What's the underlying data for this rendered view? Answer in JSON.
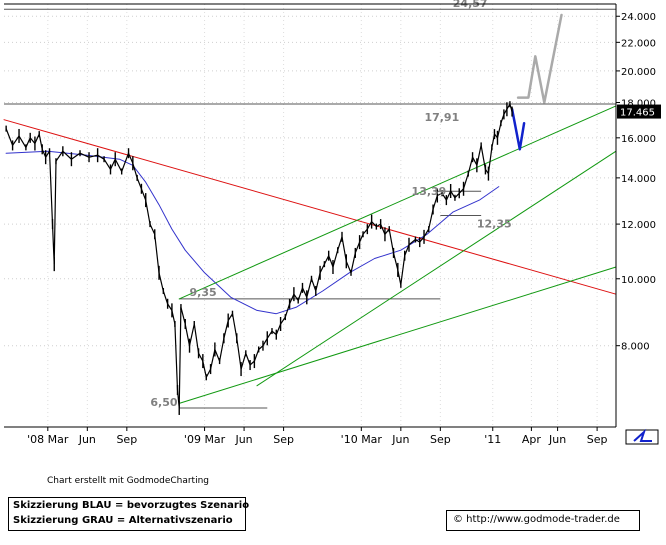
{
  "footer": {
    "credit": "Chart erstellt mit GodmodeCharting",
    "legend_line1": "Skizzierung BLAU = bevorzugtes Szenario",
    "legend_line2": "Skizzierung GRAU = Alternativszenario",
    "url": "© http://www.godmode-trader.de"
  },
  "colors": {
    "price": "#000000",
    "moving_average": "#3333cc",
    "red_trendline": "#dd1111",
    "green_channel": "#119911",
    "blue_scenario": "#1122cc",
    "gray_scenario": "#aaaaaa",
    "level_label": "#808080"
  },
  "chart_data": {
    "type": "line",
    "y_axis": {
      "ticks": [
        "24.000",
        "22.000",
        "20.000",
        "18.000",
        "16.000",
        "14.000",
        "12.000",
        "10.000",
        "8.000"
      ],
      "tick_values": [
        24,
        22,
        20,
        18,
        16,
        14,
        12,
        10,
        8
      ],
      "current_price_label": "17.465",
      "current_price": 17.465,
      "scale": "log",
      "ylim": [
        6.1,
        25
      ]
    },
    "x_axis": {
      "tick_labels": [
        "'08 Mar",
        "Jun",
        "Sep",
        "'09 Mar",
        "Jun",
        "Sep",
        "'10 Mar",
        "Jun",
        "Sep",
        "'11",
        "Apr",
        "Jun",
        "Sep"
      ],
      "tick_dates": [
        "2008-03-01",
        "2008-06-01",
        "2008-09-01",
        "2009-03-01",
        "2009-06-01",
        "2009-09-01",
        "2010-03-01",
        "2010-06-01",
        "2010-09-01",
        "2011-01-01",
        "2011-04-01",
        "2011-06-01",
        "2011-09-01"
      ],
      "range": [
        "2007-11-20",
        "2011-10-15"
      ]
    },
    "levels": [
      {
        "label": "24,57",
        "value": 24.57,
        "from": "2007-11-20",
        "to": "2011-10-15"
      },
      {
        "label": "17,91",
        "value": 17.91,
        "from": "2007-11-20",
        "to": "2011-10-15"
      },
      {
        "label": "13,39",
        "value": 13.39,
        "from": "2010-08-20",
        "to": "2010-12-05"
      },
      {
        "label": "12,35",
        "value": 12.35,
        "from": "2010-09-01",
        "to": "2010-12-05"
      },
      {
        "label": "9,35",
        "value": 9.35,
        "from": "2009-01-01",
        "to": "2010-09-01"
      },
      {
        "label": "6,50",
        "value": 6.5,
        "from": "2009-01-01",
        "to": "2009-07-25"
      }
    ],
    "series": [
      {
        "kind": "price",
        "points": [
          [
            "2007-11-25",
            16.5
          ],
          [
            "2007-12-10",
            15.6
          ],
          [
            "2007-12-25",
            16.1
          ],
          [
            "2008-01-10",
            15.5
          ],
          [
            "2008-01-20",
            16.0
          ],
          [
            "2008-01-31",
            15.7
          ],
          [
            "2008-02-10",
            16.2
          ],
          [
            "2008-02-17",
            15.4
          ],
          [
            "2008-02-25",
            15.0
          ],
          [
            "2008-03-05",
            15.3
          ],
          [
            "2008-03-12",
            12.0
          ],
          [
            "2008-03-16",
            10.5
          ],
          [
            "2008-03-20",
            14.8
          ],
          [
            "2008-04-05",
            15.3
          ],
          [
            "2008-04-25",
            14.9
          ],
          [
            "2008-05-15",
            15.2
          ],
          [
            "2008-06-05",
            15.0
          ],
          [
            "2008-06-25",
            15.1
          ],
          [
            "2008-07-10",
            14.9
          ],
          [
            "2008-07-25",
            14.4
          ],
          [
            "2008-08-05",
            14.9
          ],
          [
            "2008-08-20",
            14.3
          ],
          [
            "2008-09-05",
            15.2
          ],
          [
            "2008-09-15",
            14.7
          ],
          [
            "2008-09-25",
            14.0
          ],
          [
            "2008-10-05",
            13.5
          ],
          [
            "2008-10-15",
            13.0
          ],
          [
            "2008-10-25",
            12.0
          ],
          [
            "2008-11-05",
            11.6
          ],
          [
            "2008-11-15",
            10.2
          ],
          [
            "2008-11-25",
            9.6
          ],
          [
            "2008-12-05",
            9.2
          ],
          [
            "2008-12-15",
            9.0
          ],
          [
            "2008-12-22",
            8.6
          ],
          [
            "2008-12-28",
            6.9
          ],
          [
            "2009-01-01",
            6.5
          ],
          [
            "2009-01-05",
            9.1
          ],
          [
            "2009-01-15",
            8.6
          ],
          [
            "2009-01-25",
            8.0
          ],
          [
            "2009-02-05",
            8.6
          ],
          [
            "2009-02-15",
            7.8
          ],
          [
            "2009-02-25",
            7.6
          ],
          [
            "2009-03-05",
            7.2
          ],
          [
            "2009-03-15",
            7.4
          ],
          [
            "2009-03-25",
            7.9
          ],
          [
            "2009-04-05",
            7.6
          ],
          [
            "2009-04-15",
            8.2
          ],
          [
            "2009-04-25",
            8.7
          ],
          [
            "2009-05-05",
            8.9
          ],
          [
            "2009-05-15",
            8.2
          ],
          [
            "2009-05-25",
            7.4
          ],
          [
            "2009-06-05",
            7.8
          ],
          [
            "2009-06-15",
            7.5
          ],
          [
            "2009-06-25",
            7.6
          ],
          [
            "2009-07-05",
            7.9
          ],
          [
            "2009-07-15",
            8.0
          ],
          [
            "2009-07-25",
            8.2
          ],
          [
            "2009-08-05",
            8.4
          ],
          [
            "2009-08-15",
            8.3
          ],
          [
            "2009-08-25",
            8.6
          ],
          [
            "2009-09-05",
            8.8
          ],
          [
            "2009-09-15",
            9.2
          ],
          [
            "2009-09-25",
            9.5
          ],
          [
            "2009-10-05",
            9.3
          ],
          [
            "2009-10-15",
            9.7
          ],
          [
            "2009-10-25",
            9.4
          ],
          [
            "2009-11-05",
            10.0
          ],
          [
            "2009-11-15",
            9.6
          ],
          [
            "2009-11-25",
            10.2
          ],
          [
            "2009-12-05",
            10.5
          ],
          [
            "2009-12-15",
            10.8
          ],
          [
            "2009-12-25",
            10.4
          ],
          [
            "2010-01-05",
            11.0
          ],
          [
            "2010-01-15",
            11.5
          ],
          [
            "2010-01-25",
            10.6
          ],
          [
            "2010-02-05",
            10.2
          ],
          [
            "2010-02-15",
            10.9
          ],
          [
            "2010-02-25",
            11.3
          ],
          [
            "2010-03-05",
            11.6
          ],
          [
            "2010-03-15",
            11.8
          ],
          [
            "2010-03-25",
            12.1
          ],
          [
            "2010-04-05",
            11.9
          ],
          [
            "2010-04-15",
            12.0
          ],
          [
            "2010-04-25",
            11.6
          ],
          [
            "2010-05-05",
            11.8
          ],
          [
            "2010-05-15",
            10.9
          ],
          [
            "2010-05-25",
            10.3
          ],
          [
            "2010-06-01",
            9.8
          ],
          [
            "2010-06-10",
            10.8
          ],
          [
            "2010-06-20",
            11.2
          ],
          [
            "2010-07-05",
            11.4
          ],
          [
            "2010-07-15",
            11.3
          ],
          [
            "2010-07-25",
            11.5
          ],
          [
            "2010-08-05",
            11.8
          ],
          [
            "2010-08-15",
            12.6
          ],
          [
            "2010-08-25",
            13.2
          ],
          [
            "2010-09-05",
            13.3
          ],
          [
            "2010-09-15",
            13.0
          ],
          [
            "2010-09-25",
            13.4
          ],
          [
            "2010-10-05",
            13.1
          ],
          [
            "2010-10-15",
            13.3
          ],
          [
            "2010-10-25",
            13.5
          ],
          [
            "2010-11-05",
            14.2
          ],
          [
            "2010-11-15",
            15.0
          ],
          [
            "2010-11-25",
            14.6
          ],
          [
            "2010-12-05",
            15.6
          ],
          [
            "2010-12-15",
            14.4
          ],
          [
            "2010-12-22",
            14.2
          ],
          [
            "2010-12-30",
            15.5
          ],
          [
            "2011-01-05",
            16.2
          ],
          [
            "2011-01-12",
            16.0
          ],
          [
            "2011-01-20",
            16.8
          ],
          [
            "2011-01-27",
            17.3
          ],
          [
            "2011-02-03",
            17.6
          ],
          [
            "2011-02-10",
            17.9
          ],
          [
            "2011-02-15",
            17.465
          ]
        ]
      },
      {
        "kind": "moving_average",
        "points": [
          [
            "2007-11-25",
            15.2
          ],
          [
            "2008-03-01",
            15.3
          ],
          [
            "2008-06-01",
            15.1
          ],
          [
            "2008-08-15",
            14.9
          ],
          [
            "2008-09-15",
            14.6
          ],
          [
            "2008-10-15",
            13.8
          ],
          [
            "2008-11-15",
            12.8
          ],
          [
            "2008-12-15",
            11.8
          ],
          [
            "2009-01-15",
            11.0
          ],
          [
            "2009-03-01",
            10.2
          ],
          [
            "2009-05-01",
            9.4
          ],
          [
            "2009-07-01",
            9.0
          ],
          [
            "2009-08-15",
            8.9
          ],
          [
            "2009-10-01",
            9.1
          ],
          [
            "2009-12-01",
            9.6
          ],
          [
            "2010-02-01",
            10.2
          ],
          [
            "2010-04-01",
            10.7
          ],
          [
            "2010-06-01",
            11.0
          ],
          [
            "2010-08-01",
            11.6
          ],
          [
            "2010-10-01",
            12.5
          ],
          [
            "2010-12-01",
            13.0
          ],
          [
            "2011-01-15",
            13.6
          ]
        ]
      },
      {
        "kind": "red_trendline",
        "points": [
          [
            "2007-11-20",
            17.0
          ],
          [
            "2011-10-15",
            9.5
          ]
        ]
      },
      {
        "kind": "green_channel_upper",
        "points": [
          [
            "2009-01-01",
            9.35
          ],
          [
            "2011-10-15",
            17.8
          ]
        ]
      },
      {
        "kind": "green_channel_lower",
        "points": [
          [
            "2009-01-01",
            6.6
          ],
          [
            "2011-10-15",
            10.4
          ]
        ]
      },
      {
        "kind": "green_trend_steep",
        "points": [
          [
            "2009-07-01",
            7.0
          ],
          [
            "2011-10-15",
            15.3
          ]
        ]
      },
      {
        "kind": "blue_scenario",
        "points": [
          [
            "2011-02-15",
            17.6
          ],
          [
            "2011-03-05",
            15.4
          ],
          [
            "2011-03-15",
            16.8
          ]
        ]
      },
      {
        "kind": "gray_scenario",
        "points": [
          [
            "2011-03-01",
            18.3
          ],
          [
            "2011-03-25",
            18.3
          ],
          [
            "2011-04-10",
            21.0
          ],
          [
            "2011-05-01",
            18.0
          ],
          [
            "2011-06-10",
            24.1
          ]
        ]
      }
    ]
  }
}
